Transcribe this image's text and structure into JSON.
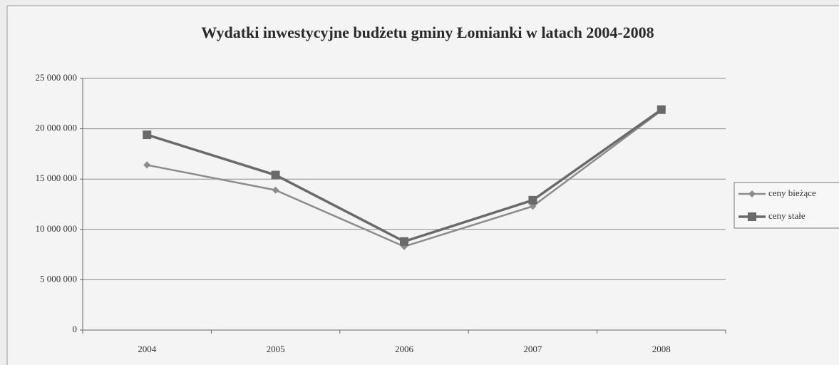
{
  "chart_data": {
    "type": "line",
    "title": "Wydatki inwestycyjne budżetu gminy Łomianki w latach  2004-2008",
    "categories": [
      "2004",
      "2005",
      "2006",
      "2007",
      "2008"
    ],
    "series": [
      {
        "name": "ceny bieżące",
        "color": "#8c8c8c",
        "marker": "diamond",
        "values": [
          16400000,
          13900000,
          8300000,
          12300000,
          21800000
        ]
      },
      {
        "name": "ceny stałe",
        "color": "#6a6a6a",
        "marker": "square",
        "values": [
          19400000,
          15400000,
          8800000,
          12900000,
          21900000
        ]
      }
    ],
    "ylim": [
      0,
      25000000
    ],
    "yticks": [
      {
        "value": 0,
        "label": "0"
      },
      {
        "value": 5000000,
        "label": "5 000 000"
      },
      {
        "value": 10000000,
        "label": "10 000 000"
      },
      {
        "value": 15000000,
        "label": "15 000 000"
      },
      {
        "value": 20000000,
        "label": "20 000 000"
      },
      {
        "value": 25000000,
        "label": "25 000 000"
      }
    ],
    "grid": true,
    "legend": "right"
  }
}
